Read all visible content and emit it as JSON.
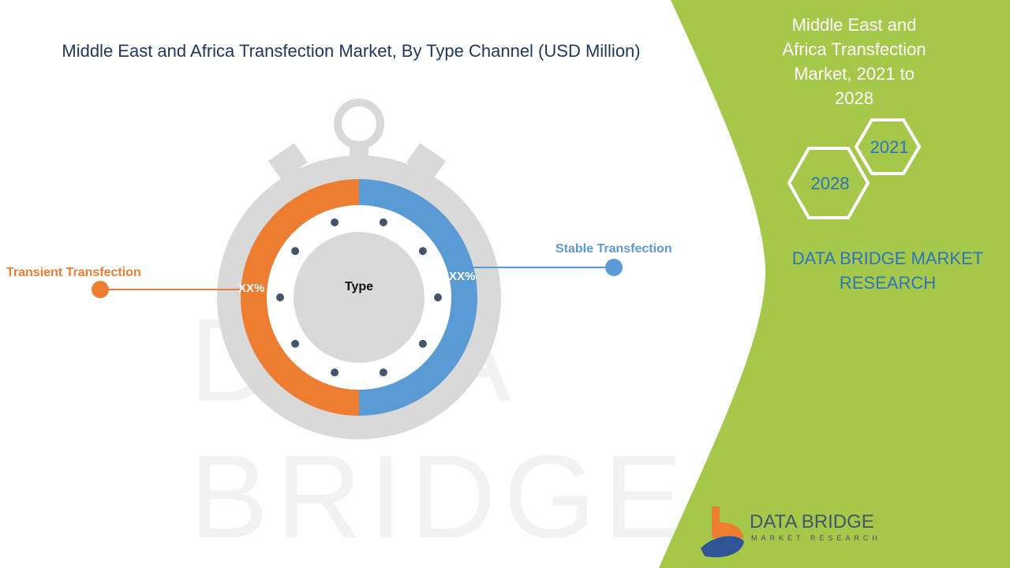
{
  "title": "Middle East and Africa Transfection Market, By Type Channel (USD Million)",
  "side_panel": {
    "title": "Middle East and Africa Transfection Market, 2021 to 2028",
    "years": [
      "2021",
      "2028"
    ],
    "brand": "DATA BRIDGE MARKET RESEARCH",
    "logo_text": "DATA BRIDGE",
    "logo_subtext": "MARKET RESEARCH",
    "bg_color": "#a5c74a"
  },
  "chart_data": {
    "type": "pie",
    "center_label": "Type",
    "categories": [
      "Transient Transfection",
      "Stable Transfection"
    ],
    "labels": [
      "XX%",
      "XX%"
    ],
    "values": [
      50,
      50
    ],
    "colors": [
      "#ed7d31",
      "#5b9bd5"
    ]
  }
}
